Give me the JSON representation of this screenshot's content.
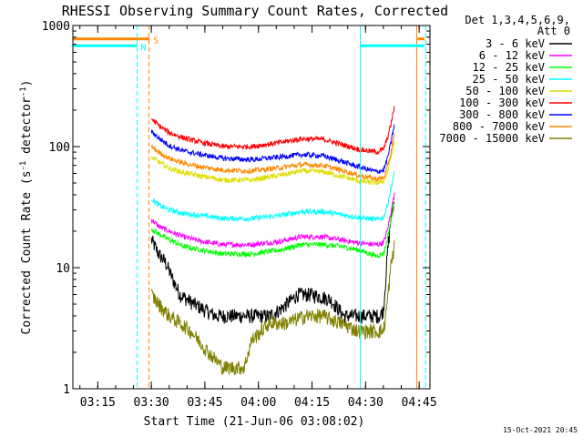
{
  "chart_data": {
    "type": "line",
    "title": "RHESSI Observing Summary Count Rates, Corrected",
    "ylabel_parts": [
      "Corrected Count Rate (s",
      "-1",
      " detector",
      "-1",
      ")"
    ],
    "xlabel": "Start Time (21-Jun-06 03:08:02)",
    "footer": "15-Oct-2021 20:45",
    "y_scale": "log",
    "ylim": [
      1,
      1000
    ],
    "xlim_minutes_after_0308": [
      0,
      100
    ],
    "grid": false,
    "y_ticks": [
      {
        "value": 1,
        "label": "1"
      },
      {
        "value": 10,
        "label": "10"
      },
      {
        "value": 100,
        "label": "100"
      },
      {
        "value": 1000,
        "label": "1000"
      }
    ],
    "x_ticks": [
      {
        "minutes": 6.97,
        "label": "03:15"
      },
      {
        "minutes": 21.97,
        "label": "03:30"
      },
      {
        "minutes": 36.97,
        "label": "03:45"
      },
      {
        "minutes": 51.97,
        "label": "04:00"
      },
      {
        "minutes": 66.97,
        "label": "04:15"
      },
      {
        "minutes": 81.97,
        "label": "04:30"
      },
      {
        "minutes": 96.97,
        "label": "04:45"
      }
    ],
    "legend_header": [
      "Det 1,3,4,5,6,9,",
      "Att 0"
    ],
    "legend_placement": "right",
    "series": [
      {
        "name": "3 - 6 keV",
        "color": "#000000",
        "x_minutes": [
          22,
          24,
          26,
          28,
          30,
          34,
          40,
          50,
          55,
          58,
          63,
          67,
          72,
          76,
          80,
          83,
          86,
          87,
          88,
          89,
          90
        ],
        "y": [
          17,
          13,
          11,
          8,
          6,
          5,
          4,
          4,
          4,
          4.5,
          6,
          6,
          5.5,
          4,
          4,
          4,
          4,
          4.5,
          12,
          25,
          35
        ]
      },
      {
        "name": "6 - 12 keV",
        "color": "#ff00ff",
        "x_minutes": [
          22,
          24,
          27,
          31,
          36,
          42,
          50,
          58,
          64,
          70,
          75,
          80,
          85,
          87,
          88,
          89,
          90
        ],
        "y": [
          25,
          22,
          20,
          18,
          16.5,
          15.5,
          15.5,
          16.5,
          18,
          18,
          17,
          16,
          15.5,
          16,
          20,
          28,
          40
        ]
      },
      {
        "name": "12 - 25 keV",
        "color": "#00ff00",
        "x_minutes": [
          22,
          24,
          27,
          31,
          36,
          42,
          50,
          58,
          64,
          70,
          75,
          80,
          85,
          87,
          88,
          89,
          90
        ],
        "y": [
          21,
          19,
          17,
          15,
          14,
          13,
          13,
          14,
          15.5,
          15.5,
          15,
          14,
          12.5,
          13,
          17,
          24,
          34
        ]
      },
      {
        "name": "25 - 50 keV",
        "color": "#00ffff",
        "x_minutes": [
          22,
          24,
          27,
          31,
          36,
          42,
          50,
          58,
          64,
          70,
          75,
          80,
          85,
          87,
          88,
          89,
          90
        ],
        "y": [
          37,
          33,
          30,
          28,
          27,
          25.5,
          25.5,
          27,
          29,
          29,
          27.5,
          26,
          25,
          26,
          32,
          44,
          60
        ]
      },
      {
        "name": "50 - 100 keV",
        "color": "#dddd00",
        "x_minutes": [
          22,
          24,
          27,
          31,
          36,
          42,
          50,
          58,
          64,
          70,
          75,
          80,
          85,
          87,
          88,
          89,
          90
        ],
        "y": [
          82,
          75,
          66,
          61,
          57,
          53,
          53,
          58,
          63,
          62,
          57,
          52,
          50,
          52,
          60,
          80,
          110
        ]
      },
      {
        "name": "100 - 300 keV",
        "color": "#ff0000",
        "x_minutes": [
          22,
          24,
          27,
          31,
          36,
          42,
          50,
          58,
          64,
          70,
          75,
          80,
          85,
          87,
          88,
          89,
          90
        ],
        "y": [
          170,
          150,
          130,
          118,
          108,
          100,
          100,
          108,
          116,
          115,
          105,
          95,
          90,
          95,
          115,
          150,
          210
        ]
      },
      {
        "name": "300 - 800 keV",
        "color": "#0000ff",
        "x_minutes": [
          22,
          24,
          27,
          31,
          36,
          42,
          50,
          58,
          64,
          70,
          75,
          80,
          85,
          87,
          88,
          89,
          90
        ],
        "y": [
          133,
          118,
          102,
          92,
          86,
          80,
          78,
          82,
          86,
          84,
          76,
          68,
          62,
          64,
          78,
          105,
          150
        ]
      },
      {
        "name": "800 - 7000 keV",
        "color": "#ff8800",
        "x_minutes": [
          22,
          24,
          27,
          31,
          36,
          42,
          50,
          58,
          64,
          70,
          75,
          80,
          85,
          87,
          88,
          89,
          90
        ],
        "y": [
          100,
          90,
          80,
          73,
          68,
          64,
          63,
          67,
          71,
          70,
          64,
          58,
          54,
          55,
          65,
          88,
          125
        ]
      },
      {
        "name": "7000 - 15000 keV",
        "color": "#808000",
        "x_minutes": [
          22,
          24,
          27,
          30,
          33,
          38,
          42,
          48,
          50,
          55,
          60,
          65,
          70,
          75,
          80,
          85,
          87,
          88,
          89,
          90
        ],
        "y": [
          6,
          5,
          4,
          3.5,
          3,
          2,
          1.5,
          1.5,
          2.5,
          3.5,
          3.5,
          4,
          4,
          3.5,
          3,
          3,
          3,
          5,
          10,
          15
        ]
      }
    ],
    "flags": [
      {
        "label": "S",
        "color": "#ff8800",
        "segments_minutes": [
          [
            0,
            21.5
          ],
          [
            96.5,
            98.5
          ]
        ],
        "y_level": 775
      },
      {
        "label": "N",
        "color": "#00ffff",
        "segments_minutes": [
          [
            0,
            18
          ],
          [
            80.5,
            98.5
          ]
        ],
        "y_level": 680
      }
    ],
    "markers": [
      {
        "kind": "solid",
        "color": "#00ffff",
        "minutes": 0
      },
      {
        "kind": "dashed",
        "color": "#00ffff",
        "minutes": 18
      },
      {
        "kind": "dashed",
        "color": "#ff8800",
        "minutes": 21.3
      },
      {
        "kind": "solid",
        "color": "#00ffff",
        "minutes": 80.5
      },
      {
        "kind": "solid",
        "color": "#ff8800",
        "minutes": 96.3
      },
      {
        "kind": "dashed",
        "color": "#00ffff",
        "minutes": 98.8
      }
    ]
  }
}
